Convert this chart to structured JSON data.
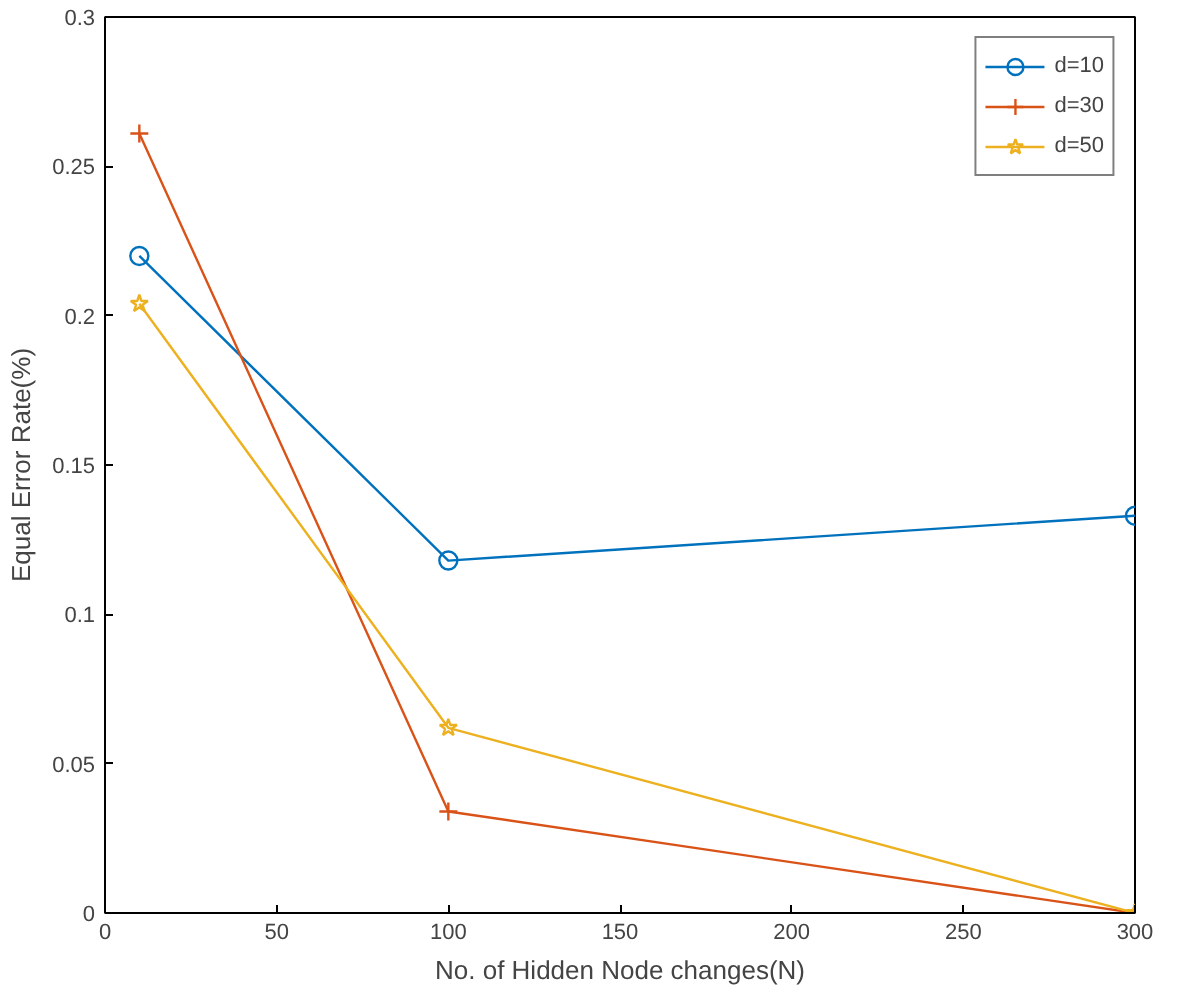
{
  "chart_data": {
    "type": "line",
    "xlabel": "No. of Hidden Node changes(N)",
    "ylabel": "Equal Error Rate(%)",
    "x": [
      10,
      100,
      300
    ],
    "series": [
      {
        "name": "d=10",
        "color": "#0072bd",
        "marker": "circle",
        "values": [
          0.22,
          0.118,
          0.133
        ]
      },
      {
        "name": "d=30",
        "color": "#d95319",
        "marker": "cross",
        "values": [
          0.261,
          0.034,
          0.0
        ]
      },
      {
        "name": "d=50",
        "color": "#edb120",
        "marker": "star",
        "values": [
          0.204,
          0.062,
          0.0
        ]
      }
    ],
    "xlim": [
      0,
      300
    ],
    "xticks": [
      0,
      50,
      100,
      150,
      200,
      250,
      300
    ],
    "ylim": [
      0,
      0.3
    ],
    "yticks": [
      0,
      0.05,
      0.1,
      0.15,
      0.2,
      0.25,
      0.3
    ],
    "legend": "top right",
    "grid": false,
    "line_style": "solid"
  }
}
